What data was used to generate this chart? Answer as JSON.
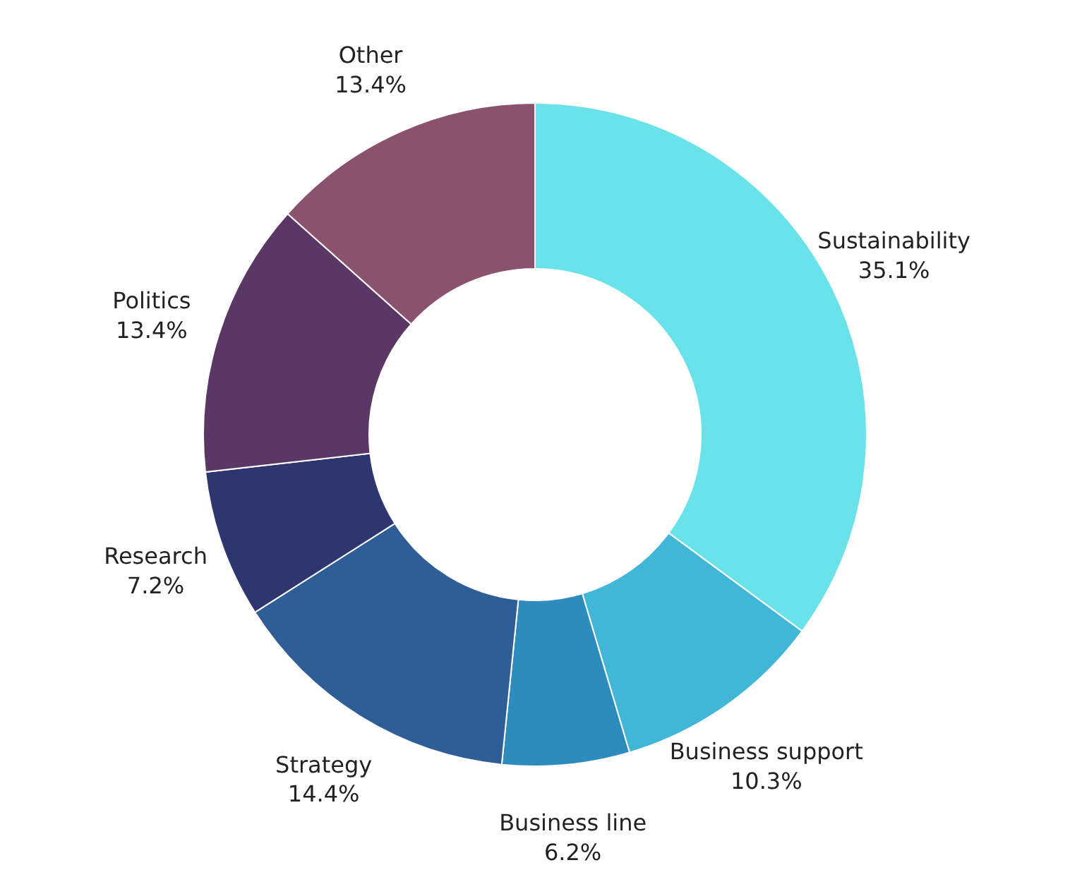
{
  "chart_data": {
    "type": "donut",
    "categories": [
      "Sustainability",
      "Business support",
      "Business line",
      "Strategy",
      "Research",
      "Politics",
      "Other"
    ],
    "values": [
      35.1,
      10.3,
      6.2,
      14.4,
      7.2,
      13.4,
      13.4
    ],
    "value_labels": [
      "35.1%",
      "10.3%",
      "6.2%",
      "14.4%",
      "7.2%",
      "13.4%",
      "13.4%"
    ],
    "colors": [
      "#69e3e9",
      "#42b6d6",
      "#2d8bbd",
      "#2f5e97",
      "#2f356e",
      "#5b3766",
      "#8a526e"
    ]
  }
}
